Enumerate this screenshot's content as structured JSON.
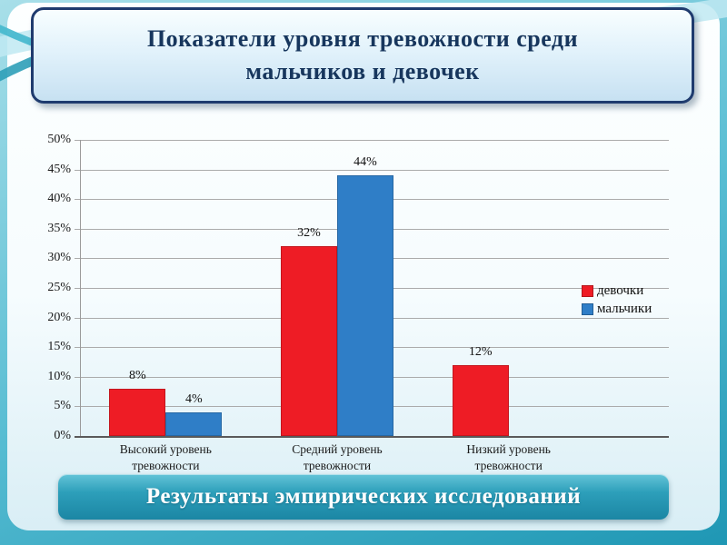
{
  "slide": {
    "title": "Показатели уровня тревожности среди\nмальчиков и девочек",
    "footer": "Результаты эмпирических исследований"
  },
  "chart_data": {
    "type": "bar",
    "title": "Показатели уровня тревожности среди мальчиков и девочек",
    "categories": [
      "Высокий уровень тревожности",
      "Средний уровень тревожности",
      "Низкий уровень тревожности"
    ],
    "series": [
      {
        "name": "девочки",
        "color": "#ee1c25",
        "values": [
          8,
          32,
          12
        ]
      },
      {
        "name": "мальчики",
        "color": "#2f7ec7",
        "values": [
          4,
          44,
          0
        ]
      }
    ],
    "xlabel": "",
    "ylabel": "",
    "ylim": [
      0,
      50
    ],
    "ytick_step": 5,
    "ytick_format": "percent",
    "grid": true,
    "legend_position": "right",
    "value_labels": {
      "девочки": [
        "8%",
        "32%",
        "12%"
      ],
      "мальчики": [
        "4%",
        "44%",
        ""
      ]
    }
  },
  "theme": {
    "title_text_color": "#17365d",
    "title_border_color": "#1f3b6e",
    "banner_text_color": "#ffffff",
    "girls_bar_color": "#ee1c25",
    "boys_bar_color": "#2f7ec7",
    "background_teal": "#2e9fba"
  }
}
